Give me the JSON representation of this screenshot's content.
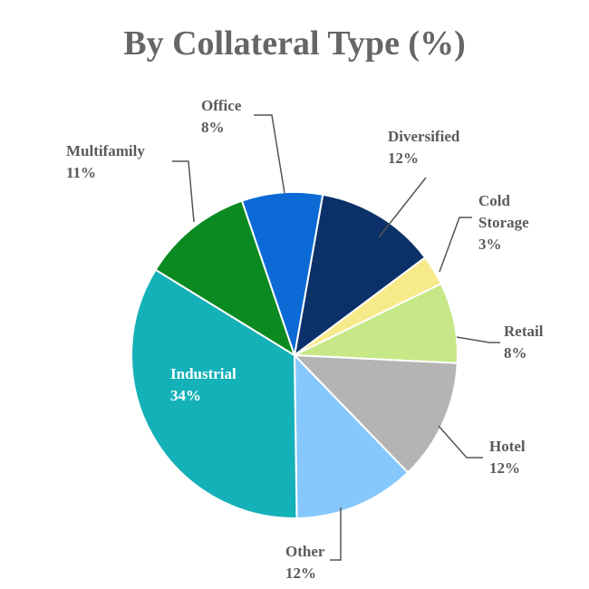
{
  "chart_data": {
    "type": "pie",
    "title": "By Collateral Type (%)",
    "categories": [
      "Diversified",
      "Cold Storage",
      "Retail",
      "Hotel",
      "Other",
      "Industrial",
      "Multifamily",
      "Office"
    ],
    "values": [
      12,
      3,
      8,
      12,
      12,
      34,
      11,
      8
    ],
    "value_labels": [
      "12%",
      "3%",
      "8%",
      "12%",
      "12%",
      "34%",
      "11%",
      "8%"
    ],
    "colors": [
      "#0b3168",
      "#f7ea8a",
      "#c6e887",
      "#b4b4b4",
      "#86c8fd",
      "#15b1b8",
      "#0a8a20",
      "#0b6ad6"
    ]
  }
}
